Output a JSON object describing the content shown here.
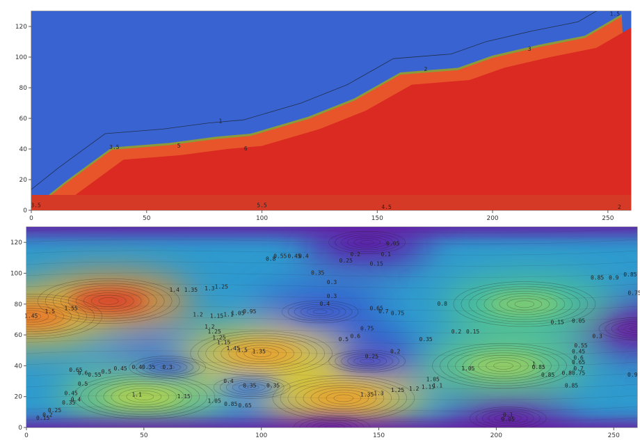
{
  "chart_data": [
    {
      "type": "filled-contour",
      "title": "",
      "xlabel": "",
      "ylabel": "",
      "xlim": [
        0,
        260
      ],
      "ylim": [
        0,
        130
      ],
      "x_ticks": [
        0,
        50,
        100,
        150,
        200,
        250
      ],
      "y_ticks": [
        0,
        20,
        40,
        60,
        80,
        100,
        120
      ],
      "grid": false,
      "colors": {
        "air": "#3a63d2",
        "soil": "#da2a22",
        "transition": "#e8552a",
        "edge": "#8b9a3a",
        "floor": "#d43a26"
      },
      "boundary_profile": {
        "x": [
          0,
          15,
          35,
          60,
          80,
          95,
          120,
          140,
          160,
          185,
          200,
          220,
          240,
          256
        ],
        "y": [
          0,
          18,
          40,
          43,
          47,
          49,
          60,
          72,
          89,
          92,
          100,
          107,
          113,
          127
        ]
      },
      "floor_level": 10,
      "contour_labels": [
        {
          "text": "1",
          "x": 82,
          "y": 57
        },
        {
          "text": "2",
          "x": 171,
          "y": 91
        },
        {
          "text": "3",
          "x": 216,
          "y": 104
        },
        {
          "text": "3.5",
          "x": 36,
          "y": 40
        },
        {
          "text": "5",
          "x": 64,
          "y": 41
        },
        {
          "text": "6",
          "x": 93,
          "y": 39
        },
        {
          "text": "5.5",
          "x": 100,
          "y": 2
        },
        {
          "text": "4.5",
          "x": 154,
          "y": 1
        },
        {
          "text": "3.5",
          "x": 2,
          "y": 2
        },
        {
          "text": "2",
          "x": 255,
          "y": 1
        },
        {
          "text": "1.5",
          "x": 253,
          "y": 127
        }
      ]
    },
    {
      "type": "heatmap",
      "subtype": "filled-contour",
      "title": "",
      "xlabel": "",
      "ylabel": "",
      "xlim": [
        0,
        260
      ],
      "ylim": [
        0,
        130
      ],
      "x_ticks": [
        0,
        50,
        100,
        150,
        200,
        250
      ],
      "y_ticks": [
        0,
        20,
        40,
        60,
        80,
        100,
        120
      ],
      "grid": false,
      "colormap": "rainbow (purple = low, red = high)",
      "value_range": [
        0,
        1.55
      ],
      "peaks": [
        {
          "x": 35,
          "y": 82,
          "value": 1.55
        },
        {
          "x": 100,
          "y": 48,
          "value": 1.35
        },
        {
          "x": 135,
          "y": 19,
          "value": 1.35
        },
        {
          "x": 212,
          "y": 80,
          "value": 1.0
        },
        {
          "x": 203,
          "y": 40,
          "value": 1.05
        },
        {
          "x": 50,
          "y": 20,
          "value": 1.1
        },
        {
          "x": 2,
          "y": 72,
          "value": 1.45
        }
      ],
      "troughs": [
        {
          "x": 145,
          "y": 120,
          "value": 0.05
        },
        {
          "x": 125,
          "y": 75,
          "value": 0.3
        },
        {
          "x": 260,
          "y": 64,
          "value": 0.0
        },
        {
          "x": 145,
          "y": 43,
          "value": 0.2
        },
        {
          "x": 60,
          "y": 39,
          "value": 0.3
        },
        {
          "x": 96,
          "y": 26,
          "value": 0.4
        },
        {
          "x": 205,
          "y": 6,
          "value": 0.05
        },
        {
          "x": 130,
          "y": 0,
          "value": 0.0
        }
      ],
      "contour_labels": [
        {
          "text": "1.45",
          "x": 2,
          "y": 71
        },
        {
          "text": "1.5",
          "x": 10,
          "y": 74
        },
        {
          "text": "1.55",
          "x": 19,
          "y": 76
        },
        {
          "text": "1.4",
          "x": 63,
          "y": 88
        },
        {
          "text": "1.35",
          "x": 70,
          "y": 88
        },
        {
          "text": "1.3",
          "x": 78,
          "y": 89
        },
        {
          "text": "1.25",
          "x": 83,
          "y": 90
        },
        {
          "text": "1.2",
          "x": 73,
          "y": 72
        },
        {
          "text": "1.15",
          "x": 81,
          "y": 71
        },
        {
          "text": "1.1",
          "x": 86,
          "y": 72
        },
        {
          "text": "1.05",
          "x": 90,
          "y": 73
        },
        {
          "text": "0.95",
          "x": 95,
          "y": 74
        },
        {
          "text": "1.35",
          "x": 99,
          "y": 48
        },
        {
          "text": "0.8",
          "x": 104,
          "y": 108
        },
        {
          "text": "0.55",
          "x": 108,
          "y": 110
        },
        {
          "text": "0.45",
          "x": 114,
          "y": 110
        },
        {
          "text": "0.4",
          "x": 118,
          "y": 110
        },
        {
          "text": "0.35",
          "x": 124,
          "y": 99
        },
        {
          "text": "0.25",
          "x": 136,
          "y": 107
        },
        {
          "text": "0.2",
          "x": 140,
          "y": 111
        },
        {
          "text": "0.1",
          "x": 153,
          "y": 111
        },
        {
          "text": "0.15",
          "x": 149,
          "y": 105
        },
        {
          "text": "0.05",
          "x": 156,
          "y": 118
        },
        {
          "text": "0.3",
          "x": 130,
          "y": 93
        },
        {
          "text": "0.3",
          "x": 130,
          "y": 84
        },
        {
          "text": "0.4",
          "x": 127,
          "y": 79
        },
        {
          "text": "0.65",
          "x": 149,
          "y": 76
        },
        {
          "text": "0.7",
          "x": 152,
          "y": 74
        },
        {
          "text": "0.75",
          "x": 158,
          "y": 73
        },
        {
          "text": "0.8",
          "x": 177,
          "y": 79
        },
        {
          "text": "0.75",
          "x": 145,
          "y": 63
        },
        {
          "text": "0.6",
          "x": 140,
          "y": 58
        },
        {
          "text": "0.5",
          "x": 135,
          "y": 56
        },
        {
          "text": "0.35",
          "x": 170,
          "y": 56
        },
        {
          "text": "0.2",
          "x": 183,
          "y": 61
        },
        {
          "text": "0.15",
          "x": 190,
          "y": 61
        },
        {
          "text": "0.25",
          "x": 147,
          "y": 45
        },
        {
          "text": "0.2",
          "x": 157,
          "y": 48
        },
        {
          "text": "1.05",
          "x": 173,
          "y": 30
        },
        {
          "text": "1.05",
          "x": 188,
          "y": 37
        },
        {
          "text": "1",
          "x": 216,
          "y": 40
        },
        {
          "text": "0.85",
          "x": 218,
          "y": 38
        },
        {
          "text": "0.85",
          "x": 222,
          "y": 33
        },
        {
          "text": "0.8",
          "x": 230,
          "y": 34
        },
        {
          "text": "0.9",
          "x": 258,
          "y": 33
        },
        {
          "text": "0.85",
          "x": 232,
          "y": 26
        },
        {
          "text": "0.85",
          "x": 243,
          "y": 96
        },
        {
          "text": "0.9",
          "x": 250,
          "y": 96
        },
        {
          "text": "0.85",
          "x": 257,
          "y": 98
        },
        {
          "text": "0.75",
          "x": 263,
          "y": 86
        },
        {
          "text": "0.15",
          "x": 226,
          "y": 67
        },
        {
          "text": "0.05",
          "x": 235,
          "y": 68
        },
        {
          "text": "0.3",
          "x": 243,
          "y": 58
        },
        {
          "text": "0.55",
          "x": 236,
          "y": 52
        },
        {
          "text": "0.45",
          "x": 235,
          "y": 48
        },
        {
          "text": "0.6",
          "x": 235,
          "y": 44
        },
        {
          "text": "0.65",
          "x": 235,
          "y": 41
        },
        {
          "text": "0.7",
          "x": 235,
          "y": 37
        },
        {
          "text": "0.75",
          "x": 235,
          "y": 34
        },
        {
          "text": "0.1",
          "x": 205,
          "y": 7
        },
        {
          "text": "0.05",
          "x": 205,
          "y": 4
        },
        {
          "text": "0.65",
          "x": 21,
          "y": 36
        },
        {
          "text": "0.6",
          "x": 24,
          "y": 34
        },
        {
          "text": "0.55",
          "x": 29,
          "y": 33
        },
        {
          "text": "0.5",
          "x": 34,
          "y": 35
        },
        {
          "text": "0.45",
          "x": 40,
          "y": 37
        },
        {
          "text": "0.4",
          "x": 47,
          "y": 38
        },
        {
          "text": "0.35",
          "x": 52,
          "y": 38
        },
        {
          "text": "0.3",
          "x": 60,
          "y": 38
        },
        {
          "text": "0.4",
          "x": 86,
          "y": 29
        },
        {
          "text": "0.35",
          "x": 95,
          "y": 26
        },
        {
          "text": "0.35",
          "x": 105,
          "y": 26
        },
        {
          "text": "1.1",
          "x": 47,
          "y": 20
        },
        {
          "text": "1.15",
          "x": 67,
          "y": 19
        },
        {
          "text": "1.05",
          "x": 80,
          "y": 16
        },
        {
          "text": "0.85",
          "x": 87,
          "y": 14
        },
        {
          "text": "0.65",
          "x": 93,
          "y": 13
        },
        {
          "text": "1.35",
          "x": 145,
          "y": 20
        },
        {
          "text": "1.3",
          "x": 150,
          "y": 21
        },
        {
          "text": "1.25",
          "x": 158,
          "y": 23
        },
        {
          "text": "1.2",
          "x": 165,
          "y": 24
        },
        {
          "text": "1.15",
          "x": 171,
          "y": 25
        },
        {
          "text": "1.1",
          "x": 175,
          "y": 26
        },
        {
          "text": "0.5",
          "x": 24,
          "y": 27
        },
        {
          "text": "0.45",
          "x": 19,
          "y": 21
        },
        {
          "text": "0.4",
          "x": 21,
          "y": 17
        },
        {
          "text": "0.35",
          "x": 18,
          "y": 15
        },
        {
          "text": "0.25",
          "x": 12,
          "y": 10
        },
        {
          "text": "0.2",
          "x": 9,
          "y": 7
        },
        {
          "text": "0.15",
          "x": 7,
          "y": 5
        },
        {
          "text": "1.2",
          "x": 78,
          "y": 64
        },
        {
          "text": "1.25",
          "x": 80,
          "y": 61
        },
        {
          "text": "1.25",
          "x": 82,
          "y": 57
        },
        {
          "text": "1.15",
          "x": 84,
          "y": 54
        },
        {
          "text": "1.45",
          "x": 88,
          "y": 50
        },
        {
          "text": "1.5",
          "x": 92,
          "y": 49
        }
      ]
    }
  ]
}
